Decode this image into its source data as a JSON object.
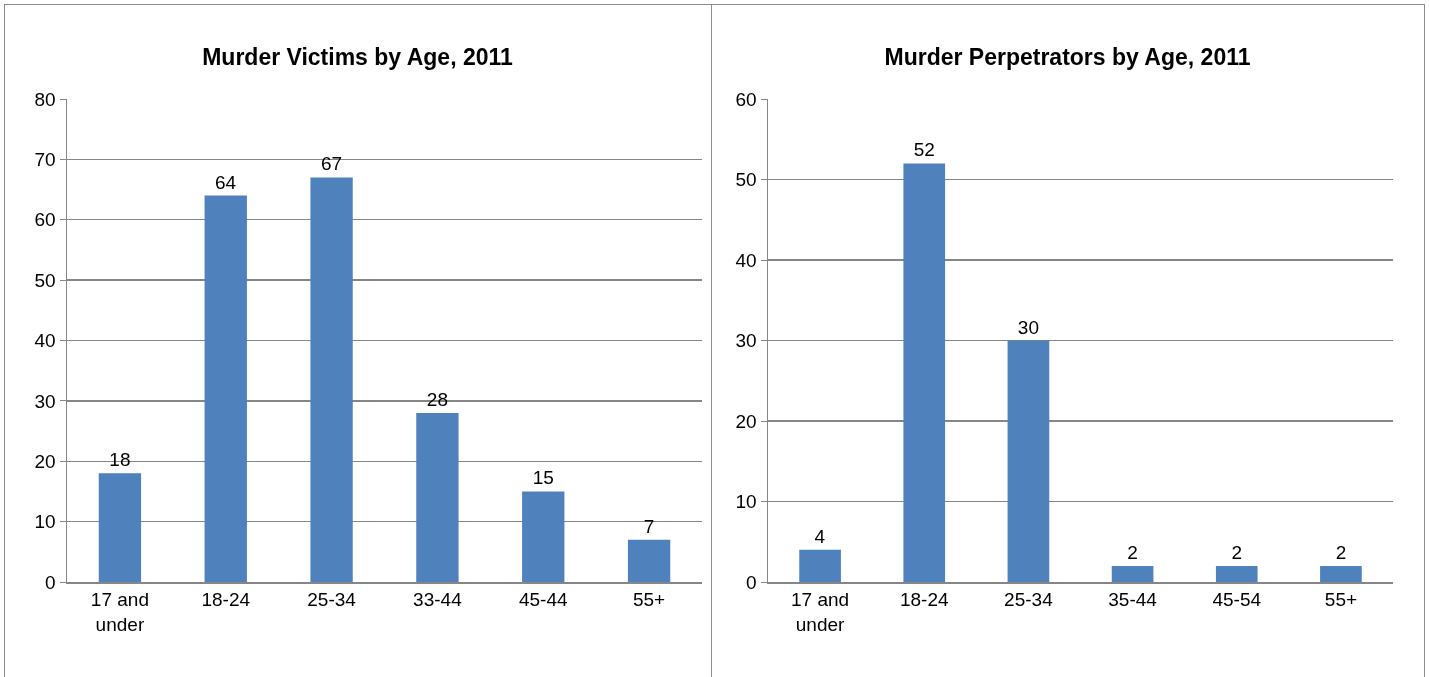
{
  "chart_data": [
    {
      "type": "bar",
      "title": "Murder Victims by Age, 2011",
      "categories": [
        "17 and under",
        "18-24",
        "25-34",
        "33-44",
        "45-44",
        "55+"
      ],
      "values": [
        18,
        64,
        67,
        28,
        15,
        7
      ],
      "color": "#4f81bd",
      "ylim": [
        0,
        80
      ],
      "yticks": [
        0,
        10,
        20,
        30,
        40,
        50,
        60,
        70,
        80
      ],
      "grid": "y",
      "data_labels": true,
      "legend": false
    },
    {
      "type": "bar",
      "title": "Murder Perpetrators by Age, 2011",
      "categories": [
        "17 and under",
        "18-24",
        "25-34",
        "35-44",
        "45-54",
        "55+"
      ],
      "values": [
        4,
        52,
        30,
        2,
        2,
        2
      ],
      "color": "#4f81bd",
      "ylim": [
        0,
        60
      ],
      "yticks": [
        0,
        10,
        20,
        30,
        40,
        50,
        60
      ],
      "grid": "y",
      "data_labels": true,
      "legend": false
    }
  ]
}
